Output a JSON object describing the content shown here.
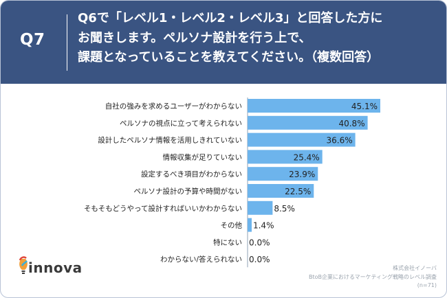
{
  "header": {
    "question_number": "Q7",
    "question_lines": [
      "Q6で「レベル1・レベル2・レベル3」と回答した方に",
      "お聞きします。ペルソナ設計を行う上で、",
      "課題となっていることを教えてください。（複数回答）"
    ]
  },
  "chart_data": {
    "type": "bar",
    "orientation": "horizontal",
    "categories": [
      "自社の強みを求めるユーザーがわからない",
      "ペルソナの視点に立って考えられない",
      "設計したペルソナ情報を活用しきれていない",
      "情報収集が足りていない",
      "設定するべき項目がわからない",
      "ペルソナ設計の予算や時間がない",
      "そもそもどうやって設計すればいいかわからない",
      "その他",
      "特にない",
      "わからない/答えられない"
    ],
    "values": [
      45.1,
      40.8,
      36.6,
      25.4,
      23.9,
      22.5,
      8.5,
      1.4,
      0.0,
      0.0
    ],
    "value_labels": [
      "45.1%",
      "40.8%",
      "36.6%",
      "25.4%",
      "23.9%",
      "22.5%",
      "8.5%",
      "1.4%",
      "0.0%",
      "0.0%"
    ],
    "xlim": [
      0,
      50
    ],
    "bar_color": "#6db4ec",
    "grid": false
  },
  "footer": {
    "company": "株式会社イノーバ",
    "survey": "BtoB企業におけるマーケティング戦略のレベル調査",
    "sample": "(n=71)"
  },
  "logo": {
    "text": "innova",
    "icon": "innova-bulb-icon"
  },
  "colors": {
    "header_bg": "#3a5482",
    "bar": "#6db4ec",
    "axis": "#8fa0b5"
  }
}
